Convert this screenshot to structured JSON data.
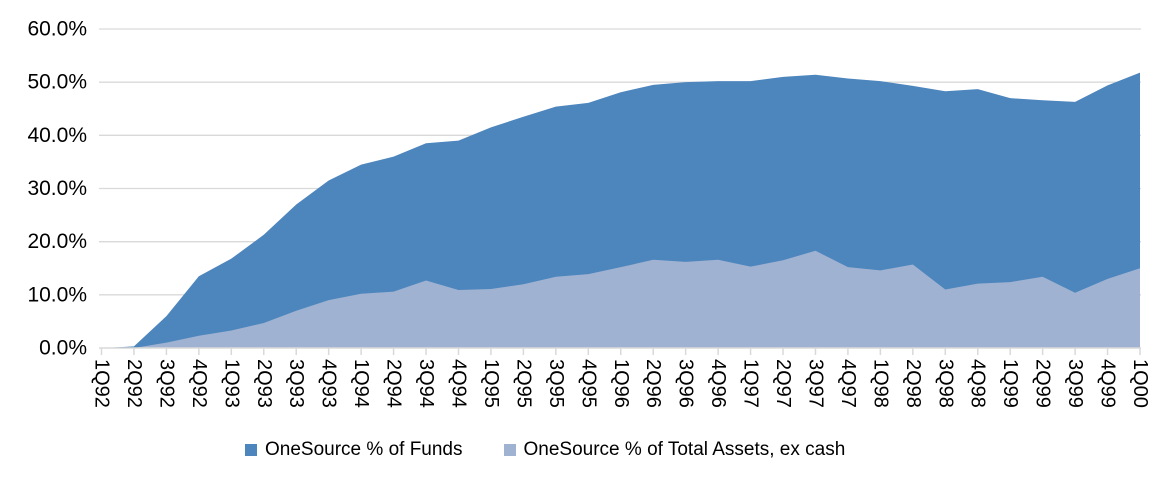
{
  "chart_data": {
    "type": "area",
    "mode": "overlapping",
    "title": "",
    "categories": [
      "1Q92",
      "2Q92",
      "3Q92",
      "4Q92",
      "1Q93",
      "2Q93",
      "3Q93",
      "4Q93",
      "1Q94",
      "2Q94",
      "3Q94",
      "4Q94",
      "1Q95",
      "2Q95",
      "3Q95",
      "4Q95",
      "1Q96",
      "2Q96",
      "3Q96",
      "4Q96",
      "1Q97",
      "2Q97",
      "3Q97",
      "4Q97",
      "1Q98",
      "2Q98",
      "3Q98",
      "4Q98",
      "1Q99",
      "2Q99",
      "3Q99",
      "4Q99",
      "1Q00"
    ],
    "series": [
      {
        "name": "OneSource % of Funds",
        "color": "#4d85bd",
        "values": [
          0,
          0.3,
          6.0,
          13.5,
          16.8,
          21.3,
          27.0,
          31.5,
          34.5,
          36.0,
          38.5,
          39.0,
          41.5,
          43.5,
          45.4,
          46.1,
          48.1,
          49.5,
          50.0,
          50.2,
          50.2,
          51.0,
          51.4,
          50.7,
          50.2,
          49.3,
          48.3,
          48.7,
          47.0,
          46.6,
          46.3,
          49.4,
          51.8
        ]
      },
      {
        "name": "OneSource % of Total Assets, ex cash",
        "color": "#9fb2d1",
        "values": [
          0,
          0,
          1.0,
          2.3,
          3.3,
          4.7,
          7.0,
          9.0,
          10.2,
          10.6,
          12.7,
          10.9,
          11.1,
          12.0,
          13.4,
          13.9,
          15.2,
          16.6,
          16.2,
          16.6,
          15.3,
          16.5,
          18.3,
          15.2,
          14.6,
          15.7,
          11.0,
          12.1,
          12.4,
          13.4,
          10.4,
          13.0,
          15.0
        ]
      }
    ],
    "ylim": [
      0,
      60
    ],
    "ytick_step": 10,
    "ytick_labels": [
      "0.0%",
      "10.0%",
      "20.0%",
      "30.0%",
      "40.0%",
      "50.0%",
      "60.0%"
    ],
    "xtick_label_rotation_deg": 90,
    "grid": "horizontal",
    "gridline_color": "#d9d9d9",
    "axis_color": "#d9d9d9",
    "text_color": "#000000",
    "legend_position": "bottom"
  },
  "legend": {
    "items": [
      {
        "label": "OneSource % of Funds"
      },
      {
        "label": "OneSource % of Total Assets, ex cash"
      }
    ]
  }
}
